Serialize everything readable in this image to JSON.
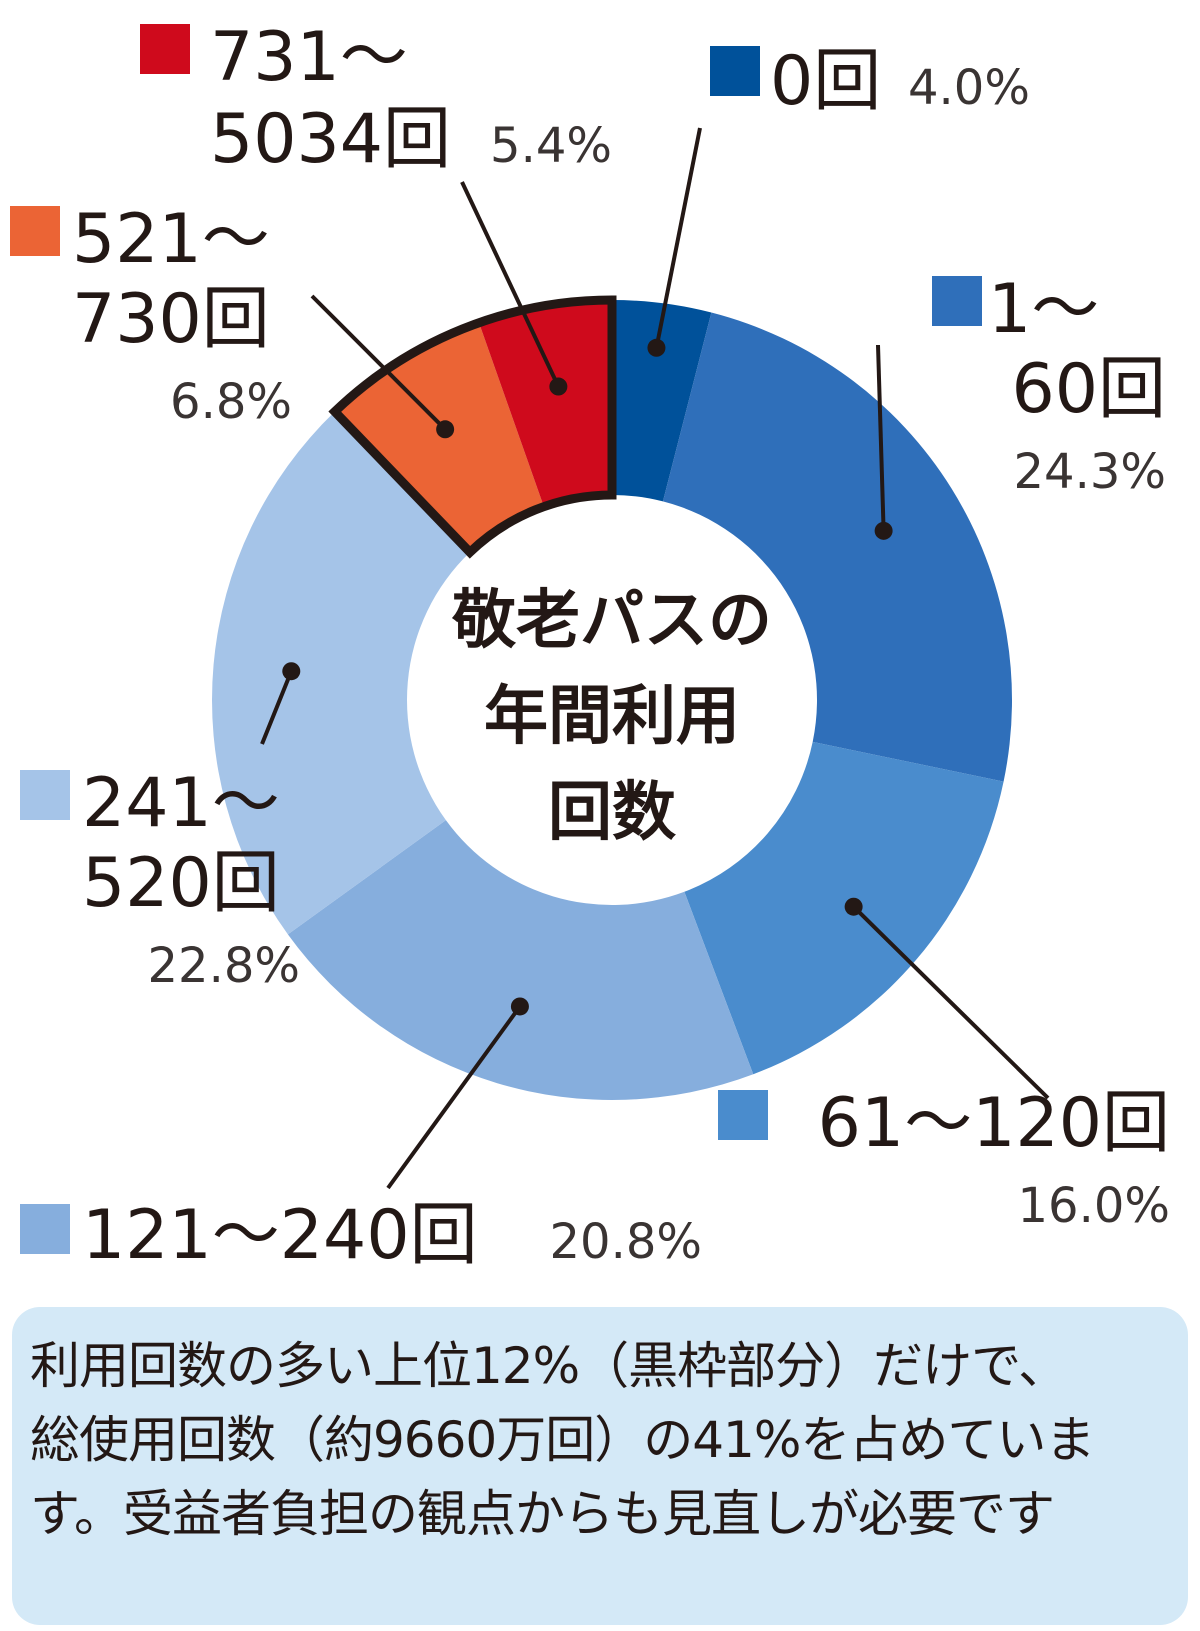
{
  "chart_data": {
    "type": "pie",
    "title": "敬老パスの年間利用回数",
    "title_lines": [
      "敬老パスの",
      "年間利用",
      "回数"
    ],
    "slices": [
      {
        "label": "0回",
        "value": 4.0,
        "value_label": "4.0%",
        "color": "#00519a"
      },
      {
        "label": "1～60回",
        "label_lines": [
          "1～",
          "60回"
        ],
        "value": 24.3,
        "value_label": "24.3%",
        "color": "#2f6fba"
      },
      {
        "label": "61～120回",
        "value": 16.0,
        "value_label": "16.0%",
        "color": "#4a8ccd"
      },
      {
        "label": "121～240回",
        "value": 20.8,
        "value_label": "20.8%",
        "color": "#86aedd"
      },
      {
        "label": "241～520回",
        "label_lines": [
          "241～",
          "520回"
        ],
        "value": 22.8,
        "value_label": "22.8%",
        "color": "#a5c4e8"
      },
      {
        "label": "521～730回",
        "label_lines": [
          "521～",
          "730回"
        ],
        "value": 6.8,
        "value_label": "6.8%",
        "color": "#eb6435"
      },
      {
        "label": "731～5034回",
        "label_lines": [
          "731～",
          "5034回"
        ],
        "value": 5.4,
        "value_label": "5.4%",
        "color": "#cf0a1c"
      }
    ],
    "highlighted_slices": [
      5,
      6
    ],
    "highlight_border_color": "#231815",
    "legend": "callouts-around-chart"
  },
  "note": {
    "lines": [
      "利用回数の多い上位12%（黒枠部分）だけで、",
      "総使用回数（約9660万回）の41%を占めていま",
      "す。受益者負担の観点からも見直しが必要です"
    ],
    "background": "#d4e9f7"
  }
}
